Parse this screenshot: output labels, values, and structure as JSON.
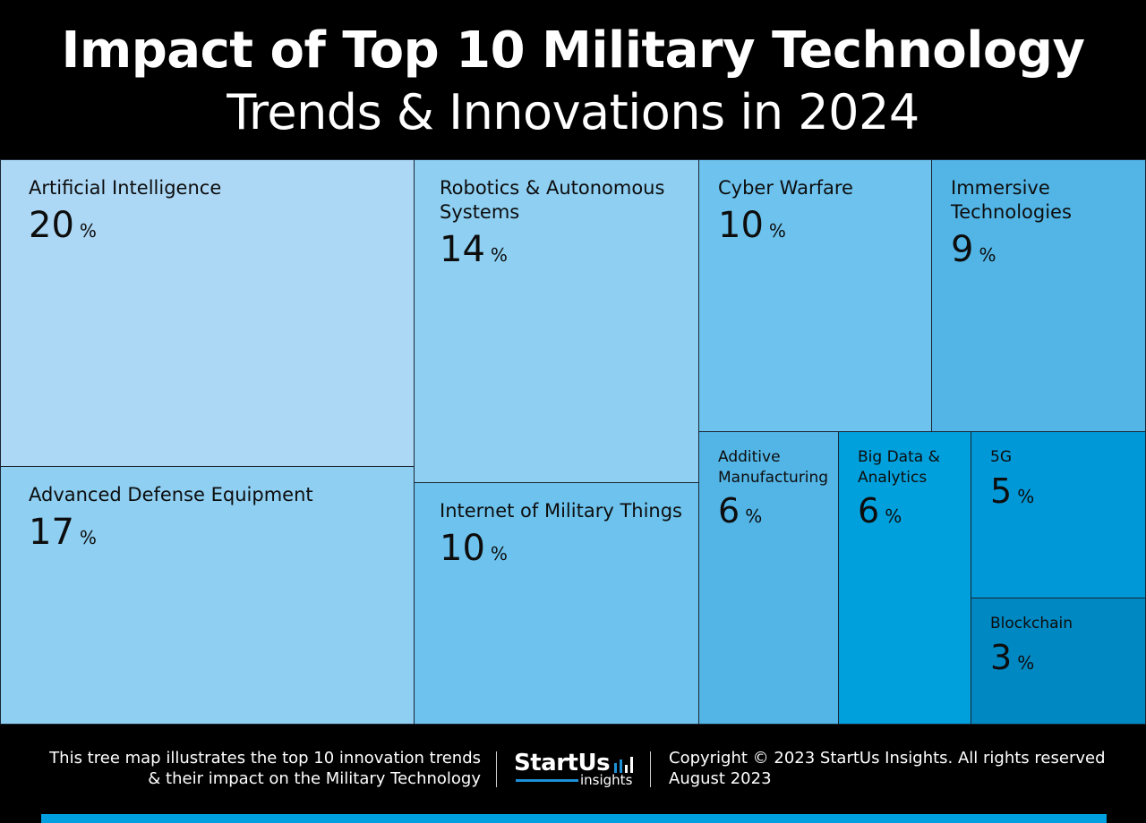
{
  "header": {
    "title": "Impact of Top 10 Military Technology",
    "subtitle": "Trends & Innovations in 2024"
  },
  "chart_data": {
    "type": "treemap",
    "title": "Impact of Top 10 Military Technology",
    "subtitle": "Trends & Innovations in 2024",
    "unit": "%",
    "items": [
      {
        "label": "Artificial Intelligence",
        "value": 20,
        "color": "#acd8f6"
      },
      {
        "label": "Advanced Defense Equipment",
        "value": 17,
        "color": "#8ecff2"
      },
      {
        "label": "Robotics & Autonomous\nSystems",
        "value": 14,
        "color": "#8ecff2"
      },
      {
        "label": "Internet of Military Things",
        "value": 10,
        "color": "#6dc3ee"
      },
      {
        "label": "Cyber Warfare",
        "value": 10,
        "color": "#6dc3ee"
      },
      {
        "label": "Immersive\nTechnologies",
        "value": 9,
        "color": "#52b5e6"
      },
      {
        "label": "Additive\nManufacturing",
        "value": 6,
        "color": "#52b5e6"
      },
      {
        "label": "Big Data &\nAnalytics",
        "value": 6,
        "color": "#00a0dc"
      },
      {
        "label": "5G",
        "value": 5,
        "color": "#0098d7"
      },
      {
        "label": "Blockchain",
        "value": 3,
        "color": "#0088c2"
      }
    ]
  },
  "footer": {
    "description": "This tree map illustrates the top 10 innovation trends\n& their impact on the Military Technology",
    "logo_word": "StartUs",
    "logo_sub": "insights",
    "copyright": "Copyright © 2023 StartUs Insights. All rights reserved",
    "date": "August 2023"
  },
  "colors": {
    "background": "#000000",
    "accent_bar": "#00a0e0",
    "logo_accent": "#1e90d6"
  }
}
